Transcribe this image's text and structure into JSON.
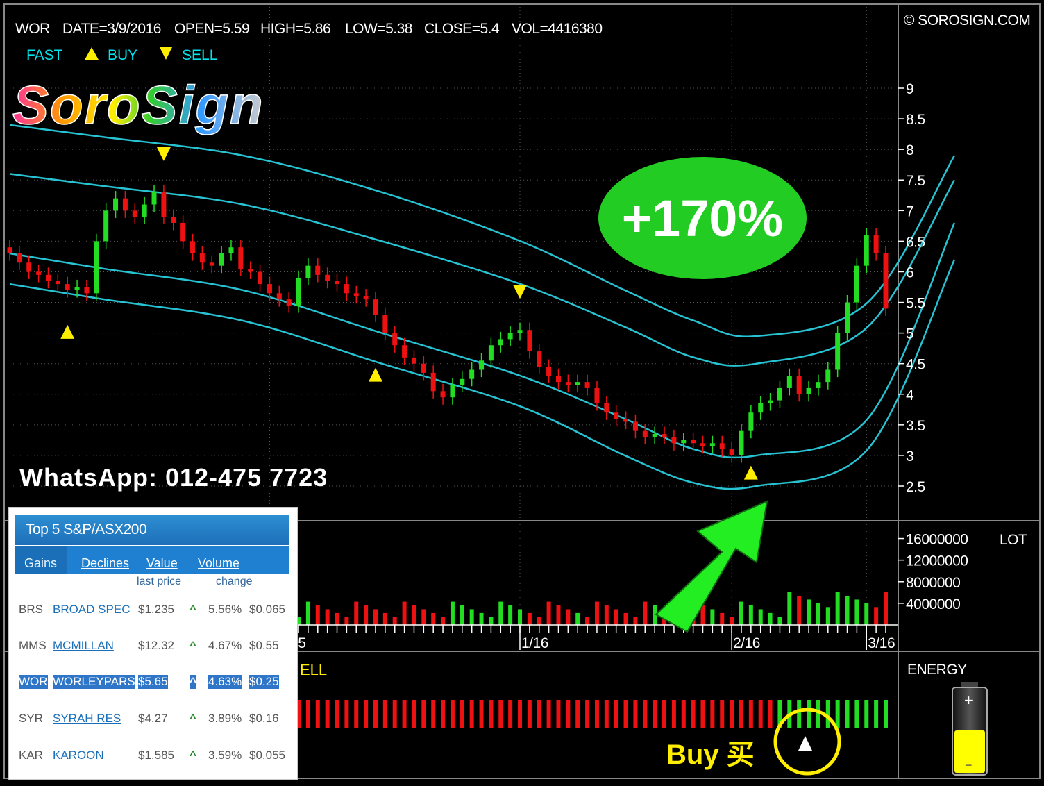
{
  "header": {
    "symbol": "WOR",
    "date": "DATE=3/9/2016",
    "open": "OPEN=5.59",
    "high": "HIGH=5.86",
    "low": "LOW=5.38",
    "close": "CLOSE=5.4",
    "vol": "VOL=4416380",
    "copyright": "© SOROSIGN.COM"
  },
  "legend": {
    "fast": "FAST",
    "buy": "BUY",
    "sell": "SELL"
  },
  "brand": {
    "logo_text": "SoroSign",
    "whatsapp": "WhatsApp: 012-475 7723"
  },
  "badge": {
    "text": "+170%",
    "color": "#22cc22"
  },
  "annotation": {
    "buy_label": "Buy 买",
    "energy_label": "ENERGY",
    "lot_label": "LOT",
    "sell_fragment": "ELL"
  },
  "colors": {
    "up": "#22dd22",
    "down": "#ee1111",
    "band": "#27c3d3",
    "signal": "#ffee00"
  },
  "chart_data": [
    {
      "type": "candlestick",
      "price_axis": {
        "ticks": [
          "9",
          "8.5",
          "8",
          "7.5",
          "7",
          "6.5",
          "6",
          "5.5",
          "5",
          "4.5",
          "4",
          "3.5",
          "3",
          "2.5"
        ],
        "range": [
          2.3,
          9.3
        ]
      },
      "x_axis": {
        "tick_labels": [
          "12/15",
          "1/16",
          "2/16",
          "3/16"
        ]
      },
      "close_path": [
        6.3,
        6.15,
        6.0,
        5.95,
        5.85,
        5.8,
        5.7,
        5.75,
        5.65,
        6.5,
        7.0,
        7.2,
        7.0,
        6.9,
        7.1,
        7.3,
        6.9,
        6.8,
        6.5,
        6.3,
        6.15,
        6.1,
        6.3,
        6.4,
        6.05,
        6.0,
        5.8,
        5.65,
        5.55,
        5.45,
        5.9,
        6.1,
        5.95,
        5.85,
        5.8,
        5.65,
        5.6,
        5.55,
        5.3,
        5.0,
        4.8,
        4.6,
        4.5,
        4.35,
        4.05,
        3.95,
        4.15,
        4.25,
        4.4,
        4.55,
        4.8,
        4.9,
        5.0,
        5.05,
        4.7,
        4.45,
        4.3,
        4.2,
        4.15,
        4.2,
        4.1,
        3.85,
        3.7,
        3.6,
        3.55,
        3.4,
        3.3,
        3.35,
        3.3,
        3.2,
        3.25,
        3.2,
        3.15,
        3.2,
        3.1,
        3.0,
        3.4,
        3.7,
        3.85,
        3.9,
        4.1,
        4.3,
        4.0,
        4.1,
        4.2,
        4.4,
        5.0,
        5.5,
        6.1,
        6.6,
        6.3,
        5.4
      ],
      "bands": {
        "upper": [
          8.4,
          8.2,
          7.9,
          7.3,
          6.5,
          5.7,
          5.2,
          4.95,
          5.5,
          7.9
        ],
        "upper_mid": [
          7.6,
          7.4,
          7.1,
          6.5,
          5.8,
          5.1,
          4.6,
          4.5,
          5.1,
          7.5
        ],
        "lower_mid": [
          6.3,
          6.05,
          5.7,
          5.0,
          4.3,
          3.6,
          3.1,
          3.0,
          3.6,
          6.8
        ],
        "lower": [
          5.8,
          5.55,
          5.2,
          4.5,
          3.8,
          3.0,
          2.55,
          2.5,
          3.1,
          6.2
        ]
      },
      "buy_signals": [
        {
          "index": 6
        },
        {
          "index": 38
        },
        {
          "index": 77
        }
      ],
      "sell_signals": [
        {
          "index": 16
        },
        {
          "index": 53
        }
      ]
    },
    {
      "type": "bar",
      "name": "volume",
      "y_axis": {
        "ticks": [
          "16000000",
          "12000000",
          "8000000",
          "4000000"
        ],
        "range": [
          0,
          18000000
        ]
      }
    },
    {
      "type": "bar",
      "name": "energy",
      "switch_index": 58
    }
  ],
  "top5": {
    "title": "Top 5 S&P/ASX200",
    "tabs": [
      "Gains",
      "Declines",
      "Value",
      "Volume"
    ],
    "col_last": "last price",
    "col_change": "change",
    "rows": [
      {
        "code": "BRS",
        "name": "BROAD SPEC",
        "price": "$1.235",
        "pct": "5.56%",
        "chg": "$0.065"
      },
      {
        "code": "MMS",
        "name": "MCMILLAN",
        "price": "$12.32",
        "pct": "4.67%",
        "chg": "$0.55"
      },
      {
        "code": "WOR",
        "name": "WORLEYPARS",
        "price": "$5.65",
        "pct": "4.63%",
        "chg": "$0.25"
      },
      {
        "code": "SYR",
        "name": "SYRAH RES",
        "price": "$4.27",
        "pct": "3.89%",
        "chg": "$0.16"
      },
      {
        "code": "KAR",
        "name": "KAROON",
        "price": "$1.585",
        "pct": "3.59%",
        "chg": "$0.055"
      }
    ]
  }
}
